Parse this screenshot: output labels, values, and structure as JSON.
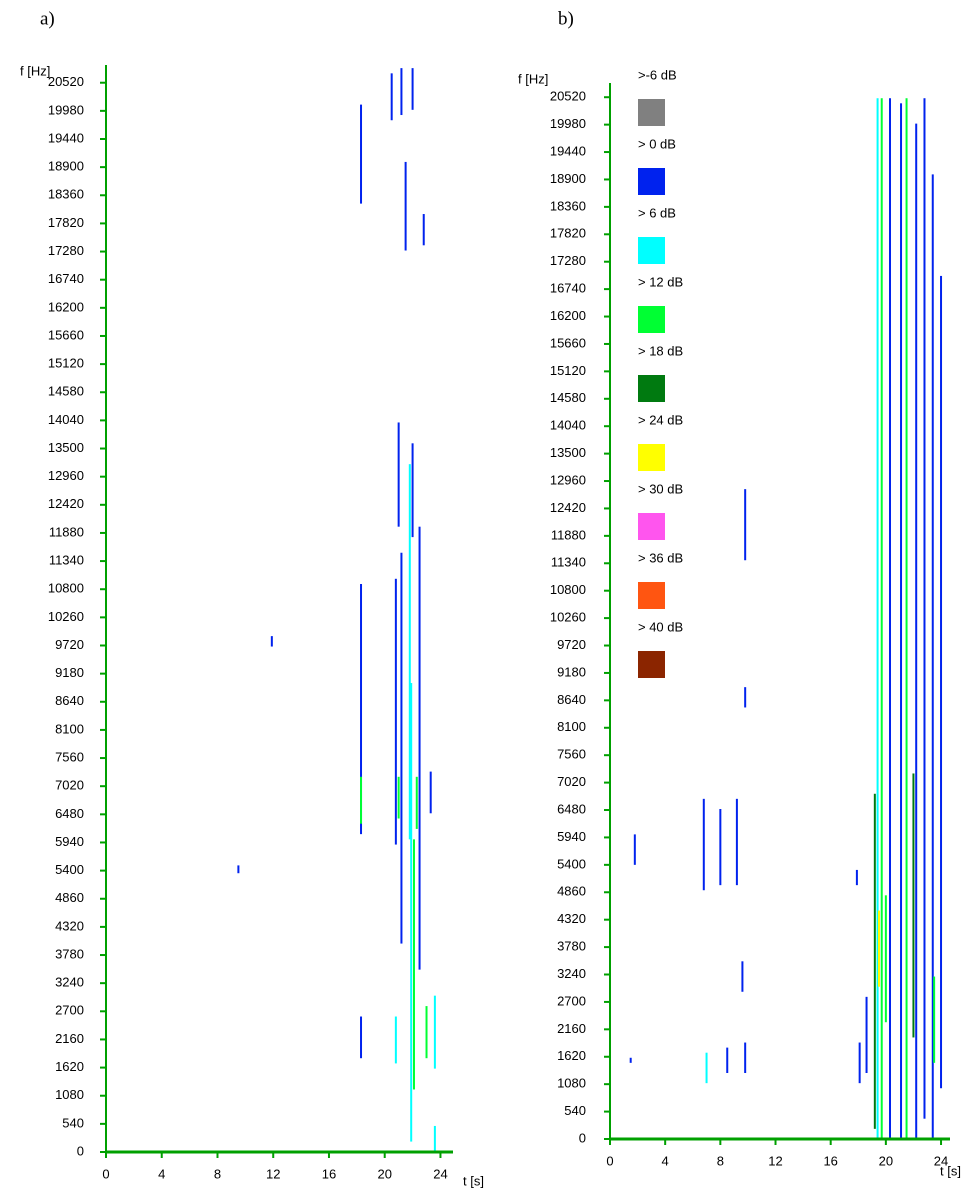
{
  "chart_data": [
    {
      "type": "spectrogram",
      "panel_label": "a)",
      "y_label": "f [Hz]",
      "x_label": "t [s]",
      "xlim": [
        0,
        24.9
      ],
      "ylim": [
        0,
        20860
      ],
      "xticks": [
        0,
        4,
        8,
        12,
        16,
        20,
        24
      ],
      "yticks": [
        0,
        540,
        1080,
        1620,
        2160,
        2700,
        3240,
        3780,
        4320,
        4860,
        5400,
        5940,
        6480,
        7020,
        7560,
        8100,
        8640,
        9180,
        9720,
        10260,
        10800,
        11340,
        11880,
        12420,
        12960,
        13500,
        14040,
        14580,
        15120,
        15660,
        16200,
        16740,
        17280,
        17820,
        18360,
        18900,
        19440,
        19980,
        20520
      ],
      "axis_color": "#00a000",
      "segments": [
        {
          "t": 18.3,
          "f0": 18200,
          "f1": 20100,
          "level": 0
        },
        {
          "t": 20.5,
          "f0": 19800,
          "f1": 20700,
          "level": 0
        },
        {
          "t": 21.2,
          "f0": 19900,
          "f1": 20800,
          "level": 0
        },
        {
          "t": 22.0,
          "f0": 20000,
          "f1": 20800,
          "level": 0
        },
        {
          "t": 21.5,
          "f0": 17300,
          "f1": 19000,
          "level": 0
        },
        {
          "t": 22.8,
          "f0": 17400,
          "f1": 18000,
          "level": 0
        },
        {
          "t": 21.0,
          "f0": 12000,
          "f1": 14000,
          "level": 0
        },
        {
          "t": 22.0,
          "f0": 11800,
          "f1": 13600,
          "level": 0
        },
        {
          "t": 21.8,
          "f0": 6000,
          "f1": 13200,
          "level": 6
        },
        {
          "t": 21.2,
          "f0": 4000,
          "f1": 11500,
          "level": 0
        },
        {
          "t": 22.5,
          "f0": 3500,
          "f1": 12000,
          "level": 0
        },
        {
          "t": 20.8,
          "f0": 5900,
          "f1": 11000,
          "level": 0
        },
        {
          "t": 18.3,
          "f0": 6100,
          "f1": 10900,
          "level": 0
        },
        {
          "t": 18.3,
          "f0": 6300,
          "f1": 7200,
          "level": 12
        },
        {
          "t": 21.0,
          "f0": 6400,
          "f1": 7200,
          "level": 12
        },
        {
          "t": 22.3,
          "f0": 6200,
          "f1": 7200,
          "level": 12
        },
        {
          "t": 23.3,
          "f0": 6500,
          "f1": 7300,
          "level": 0
        },
        {
          "t": 21.9,
          "f0": 200,
          "f1": 9000,
          "level": 6
        },
        {
          "t": 22.1,
          "f0": 1200,
          "f1": 6000,
          "level": 12
        },
        {
          "t": 20.8,
          "f0": 1700,
          "f1": 2600,
          "level": 6
        },
        {
          "t": 23.0,
          "f0": 1800,
          "f1": 2800,
          "level": 12
        },
        {
          "t": 23.6,
          "f0": 1600,
          "f1": 3000,
          "level": 6
        },
        {
          "t": 18.3,
          "f0": 1800,
          "f1": 2600,
          "level": 0
        },
        {
          "t": 23.6,
          "f0": 0,
          "f1": 500,
          "level": 6
        },
        {
          "t": 11.9,
          "f0": 9700,
          "f1": 9900,
          "level": 0
        },
        {
          "t": 9.5,
          "f0": 5350,
          "f1": 5500,
          "level": 0
        }
      ]
    },
    {
      "type": "spectrogram",
      "panel_label": "b)",
      "y_label": "f [Hz]",
      "x_label": "t [s]",
      "xlim": [
        0,
        24.65
      ],
      "ylim": [
        0,
        20800
      ],
      "xticks": [
        0,
        4,
        8,
        12,
        16,
        20,
        24
      ],
      "yticks": [
        0,
        540,
        1080,
        1620,
        2160,
        2700,
        3240,
        3780,
        4320,
        4860,
        5400,
        5940,
        6480,
        7020,
        7560,
        8100,
        8640,
        9180,
        9720,
        10260,
        10800,
        11340,
        11880,
        12420,
        12960,
        13500,
        14040,
        14580,
        15120,
        15660,
        16200,
        16740,
        17280,
        17820,
        18360,
        18900,
        19440,
        19980,
        20520
      ],
      "axis_color": "#00a000",
      "legend": [
        {
          "value": -6,
          "label": ">-6 dB",
          "color": "#808080"
        },
        {
          "value": 0,
          "label": "> 0 dB",
          "color": "#0022ee"
        },
        {
          "value": 6,
          "label": "> 6 dB",
          "color": "#00ffff"
        },
        {
          "value": 12,
          "label": "> 12 dB",
          "color": "#00ff33"
        },
        {
          "value": 18,
          "label": "> 18 dB",
          "color": "#007a10"
        },
        {
          "value": 24,
          "label": "> 24 dB",
          "color": "#ffff00"
        },
        {
          "value": 30,
          "label": "> 30 dB",
          "color": "#ff55ee"
        },
        {
          "value": 36,
          "label": "> 36 dB",
          "color": "#ff5511"
        },
        {
          "value": 40,
          "label": "> 40 dB",
          "color": "#8b2500"
        }
      ],
      "segments": [
        {
          "t": 19.4,
          "f0": 0,
          "f1": 20500,
          "level": 6
        },
        {
          "t": 19.7,
          "f0": 0,
          "f1": 20500,
          "level": 12
        },
        {
          "t": 20.3,
          "f0": 0,
          "f1": 20500,
          "level": 0
        },
        {
          "t": 21.5,
          "f0": 0,
          "f1": 20500,
          "level": 12
        },
        {
          "t": 21.1,
          "f0": 0,
          "f1": 20400,
          "level": 0
        },
        {
          "t": 22.2,
          "f0": 0,
          "f1": 20000,
          "level": 0
        },
        {
          "t": 22.8,
          "f0": 400,
          "f1": 20500,
          "level": 0
        },
        {
          "t": 23.4,
          "f0": 0,
          "f1": 19000,
          "level": 0
        },
        {
          "t": 24.0,
          "f0": 1000,
          "f1": 17000,
          "level": 0
        },
        {
          "t": 19.5,
          "f0": 3000,
          "f1": 4500,
          "level": 24
        },
        {
          "t": 20.0,
          "f0": 2300,
          "f1": 4800,
          "level": 12
        },
        {
          "t": 19.2,
          "f0": 200,
          "f1": 6800,
          "level": 18
        },
        {
          "t": 18.6,
          "f0": 1300,
          "f1": 2800,
          "level": 0
        },
        {
          "t": 18.1,
          "f0": 1100,
          "f1": 1900,
          "level": 0
        },
        {
          "t": 9.8,
          "f0": 11400,
          "f1": 12800,
          "level": 0
        },
        {
          "t": 9.8,
          "f0": 8500,
          "f1": 8900,
          "level": 0
        },
        {
          "t": 1.8,
          "f0": 5400,
          "f1": 6000,
          "level": 0
        },
        {
          "t": 6.8,
          "f0": 4900,
          "f1": 6700,
          "level": 0
        },
        {
          "t": 8.0,
          "f0": 5000,
          "f1": 6500,
          "level": 0
        },
        {
          "t": 9.2,
          "f0": 5000,
          "f1": 6700,
          "level": 0
        },
        {
          "t": 7.0,
          "f0": 1100,
          "f1": 1700,
          "level": 6
        },
        {
          "t": 8.5,
          "f0": 1300,
          "f1": 1800,
          "level": 0
        },
        {
          "t": 9.8,
          "f0": 1300,
          "f1": 1900,
          "level": 0
        },
        {
          "t": 9.6,
          "f0": 2900,
          "f1": 3500,
          "level": 0
        },
        {
          "t": 1.5,
          "f0": 1500,
          "f1": 1600,
          "level": 0
        },
        {
          "t": 17.9,
          "f0": 5000,
          "f1": 5300,
          "level": 0
        },
        {
          "t": 22.0,
          "f0": 2000,
          "f1": 7200,
          "level": 18
        },
        {
          "t": 23.5,
          "f0": 1500,
          "f1": 3200,
          "level": 12
        }
      ]
    }
  ]
}
